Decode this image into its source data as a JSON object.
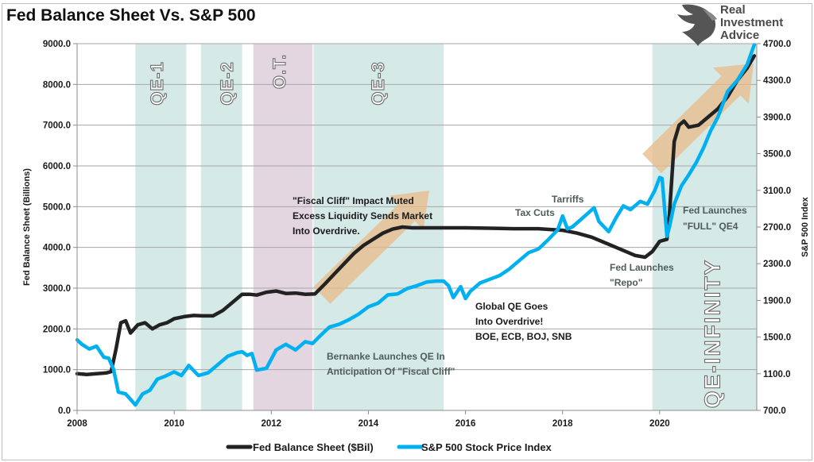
{
  "chart_data": {
    "type": "line",
    "title": "Fed Balance Sheet Vs. S&P 500",
    "xlabel": "",
    "ylabel": "Fed Balance Sheet (Billions)",
    "y2label": "S&P 500 Index",
    "xlim": [
      2008,
      2022
    ],
    "ylim": [
      0,
      9000
    ],
    "y2lim": [
      700,
      4700
    ],
    "grid": true,
    "legend_position": "bottom",
    "x_ticks": [
      "2008",
      "2010",
      "2012",
      "2014",
      "2016",
      "2018",
      "2020"
    ],
    "x_tick_values": [
      2008,
      2010,
      2012,
      2014,
      2016,
      2018,
      2020
    ],
    "y_ticks": [
      "0.0",
      "1000.0",
      "2000.0",
      "3000.0",
      "4000.0",
      "5000.0",
      "6000.0",
      "7000.0",
      "8000.0",
      "9000.0"
    ],
    "y_tick_values": [
      0,
      1000,
      2000,
      3000,
      4000,
      5000,
      6000,
      7000,
      8000,
      9000
    ],
    "y2_ticks": [
      "700.0",
      "1100.0",
      "1500.0",
      "1900.0",
      "2300.0",
      "2700.0",
      "3100.0",
      "3500.0",
      "3900.0",
      "4300.0",
      "4700.0"
    ],
    "y2_tick_values": [
      700,
      1100,
      1500,
      1900,
      2300,
      2700,
      3100,
      3500,
      3900,
      4300,
      4700
    ],
    "series": [
      {
        "name": "Fed Balance Sheet ($Bil)",
        "axis": "left",
        "color": "#222222",
        "x": [
          2008.0,
          2008.2,
          2008.4,
          2008.6,
          2008.7,
          2008.8,
          2008.9,
          2009.0,
          2009.1,
          2009.25,
          2009.4,
          2009.55,
          2009.7,
          2009.85,
          2010.0,
          2010.2,
          2010.4,
          2010.6,
          2010.8,
          2011.0,
          2011.2,
          2011.4,
          2011.55,
          2011.7,
          2011.9,
          2012.1,
          2012.3,
          2012.5,
          2012.7,
          2012.9,
          2013.1,
          2013.3,
          2013.5,
          2013.7,
          2013.9,
          2014.1,
          2014.3,
          2014.5,
          2014.7,
          2014.9,
          2015.2,
          2015.6,
          2016.0,
          2016.5,
          2017.0,
          2017.5,
          2018.0,
          2018.3,
          2018.6,
          2018.9,
          2019.2,
          2019.5,
          2019.7,
          2019.85,
          2020.0,
          2020.15,
          2020.2,
          2020.3,
          2020.4,
          2020.5,
          2020.6,
          2020.8,
          2021.0,
          2021.2,
          2021.4,
          2021.6,
          2021.8,
          2021.95
        ],
        "values": [
          900,
          880,
          900,
          920,
          950,
          1500,
          2150,
          2200,
          1900,
          2100,
          2150,
          2000,
          2100,
          2150,
          2250,
          2300,
          2330,
          2320,
          2320,
          2450,
          2650,
          2850,
          2850,
          2830,
          2900,
          2930,
          2870,
          2880,
          2850,
          2860,
          3100,
          3350,
          3600,
          3850,
          4050,
          4200,
          4350,
          4450,
          4500,
          4480,
          4480,
          4480,
          4480,
          4470,
          4460,
          4460,
          4420,
          4350,
          4250,
          4100,
          3950,
          3800,
          3760,
          3900,
          4150,
          4200,
          4800,
          6600,
          7000,
          7100,
          6950,
          7000,
          7200,
          7400,
          7700,
          8100,
          8400,
          8700
        ]
      },
      {
        "name": "S&P 500 Stock Price Index",
        "axis": "right",
        "color": "#00b0f0",
        "x": [
          2008.0,
          2008.1,
          2008.25,
          2008.4,
          2008.55,
          2008.65,
          2008.75,
          2008.85,
          2009.0,
          2009.1,
          2009.2,
          2009.35,
          2009.5,
          2009.65,
          2009.8,
          2010.0,
          2010.15,
          2010.3,
          2010.5,
          2010.7,
          2010.9,
          2011.1,
          2011.3,
          2011.4,
          2011.5,
          2011.6,
          2011.7,
          2011.9,
          2012.1,
          2012.3,
          2012.5,
          2012.7,
          2012.85,
          2013.0,
          2013.2,
          2013.4,
          2013.6,
          2013.8,
          2014.0,
          2014.2,
          2014.4,
          2014.6,
          2014.8,
          2015.0,
          2015.2,
          2015.4,
          2015.55,
          2015.65,
          2015.75,
          2015.9,
          2016.0,
          2016.1,
          2016.3,
          2016.5,
          2016.7,
          2016.9,
          2017.1,
          2017.3,
          2017.5,
          2017.7,
          2017.9,
          2018.0,
          2018.1,
          2018.2,
          2018.35,
          2018.5,
          2018.65,
          2018.75,
          2018.95,
          2019.1,
          2019.25,
          2019.4,
          2019.6,
          2019.75,
          2019.9,
          2020.0,
          2020.05,
          2020.15,
          2020.2,
          2020.3,
          2020.45,
          2020.6,
          2020.75,
          2020.9,
          2021.05,
          2021.2,
          2021.4,
          2021.6,
          2021.8,
          2021.95
        ],
        "values": [
          1470,
          1420,
          1370,
          1400,
          1280,
          1270,
          1150,
          900,
          880,
          820,
          760,
          880,
          920,
          1040,
          1070,
          1120,
          1080,
          1190,
          1080,
          1110,
          1200,
          1290,
          1330,
          1340,
          1300,
          1320,
          1140,
          1160,
          1360,
          1420,
          1360,
          1450,
          1430,
          1510,
          1610,
          1640,
          1690,
          1750,
          1830,
          1870,
          1960,
          1970,
          2030,
          2060,
          2100,
          2110,
          2110,
          2060,
          1930,
          2050,
          1920,
          2000,
          2090,
          2130,
          2170,
          2240,
          2330,
          2420,
          2460,
          2560,
          2670,
          2820,
          2680,
          2700,
          2770,
          2840,
          2910,
          2760,
          2650,
          2800,
          2930,
          2890,
          2980,
          2950,
          3100,
          3240,
          3230,
          2600,
          2700,
          2950,
          3150,
          3270,
          3400,
          3560,
          3750,
          3900,
          4180,
          4300,
          4470,
          4690
        ]
      }
    ],
    "shaded_regions": [
      {
        "label": "QE-1",
        "start": 2009.2,
        "end": 2010.25,
        "color": "#d5eae7"
      },
      {
        "label": "QE-2",
        "start": 2010.55,
        "end": 2011.4,
        "color": "#d5eae7"
      },
      {
        "label": "O.T.",
        "start": 2011.63,
        "end": 2012.85,
        "color": "#e4d6e1"
      },
      {
        "label": "QE-3",
        "start": 2012.87,
        "end": 2015.55,
        "color": "#d5eae7"
      },
      {
        "label": "QE-INFINITY",
        "start": 2019.85,
        "end": 2022.0,
        "color": "#d5eae7"
      }
    ],
    "annotations": [
      {
        "id": "fiscal-cliff",
        "lines": [
          "\"Fiscal Cliff\" Impact Muted",
          "Excess Liquidity Sends Market",
          "Into Overdrive."
        ],
        "color": "#1a1a1a"
      },
      {
        "id": "bernanke",
        "lines": [
          "Bernanke Launches QE In",
          "Anticipation Of \"Fiscal Cliff\""
        ],
        "color": "#4f5b5a"
      },
      {
        "id": "global-qe",
        "lines": [
          "Global QE Goes",
          "Into Overdrive!",
          "BOE, ECB, BOJ, SNB"
        ],
        "color": "#1a1a1a"
      },
      {
        "id": "tax-cuts",
        "lines": [
          "Tax Cuts"
        ],
        "color": "#4f5b5a"
      },
      {
        "id": "tariffs",
        "lines": [
          "Tarriffs"
        ],
        "color": "#4f5b5a"
      },
      {
        "id": "repo",
        "lines": [
          "Fed Launches",
          "\"Repo\""
        ],
        "color": "#4f5b5a"
      },
      {
        "id": "qe4",
        "lines": [
          "Fed Launches",
          "\"FULL\" QE4"
        ],
        "color": "#4f5b5a"
      }
    ]
  },
  "logo": {
    "lines": [
      "Real",
      "Investment",
      "Advice"
    ]
  },
  "colors": {
    "arrow": "#e8b98a",
    "grid": "#a6a6a6",
    "axis": "#8c8c8c"
  }
}
